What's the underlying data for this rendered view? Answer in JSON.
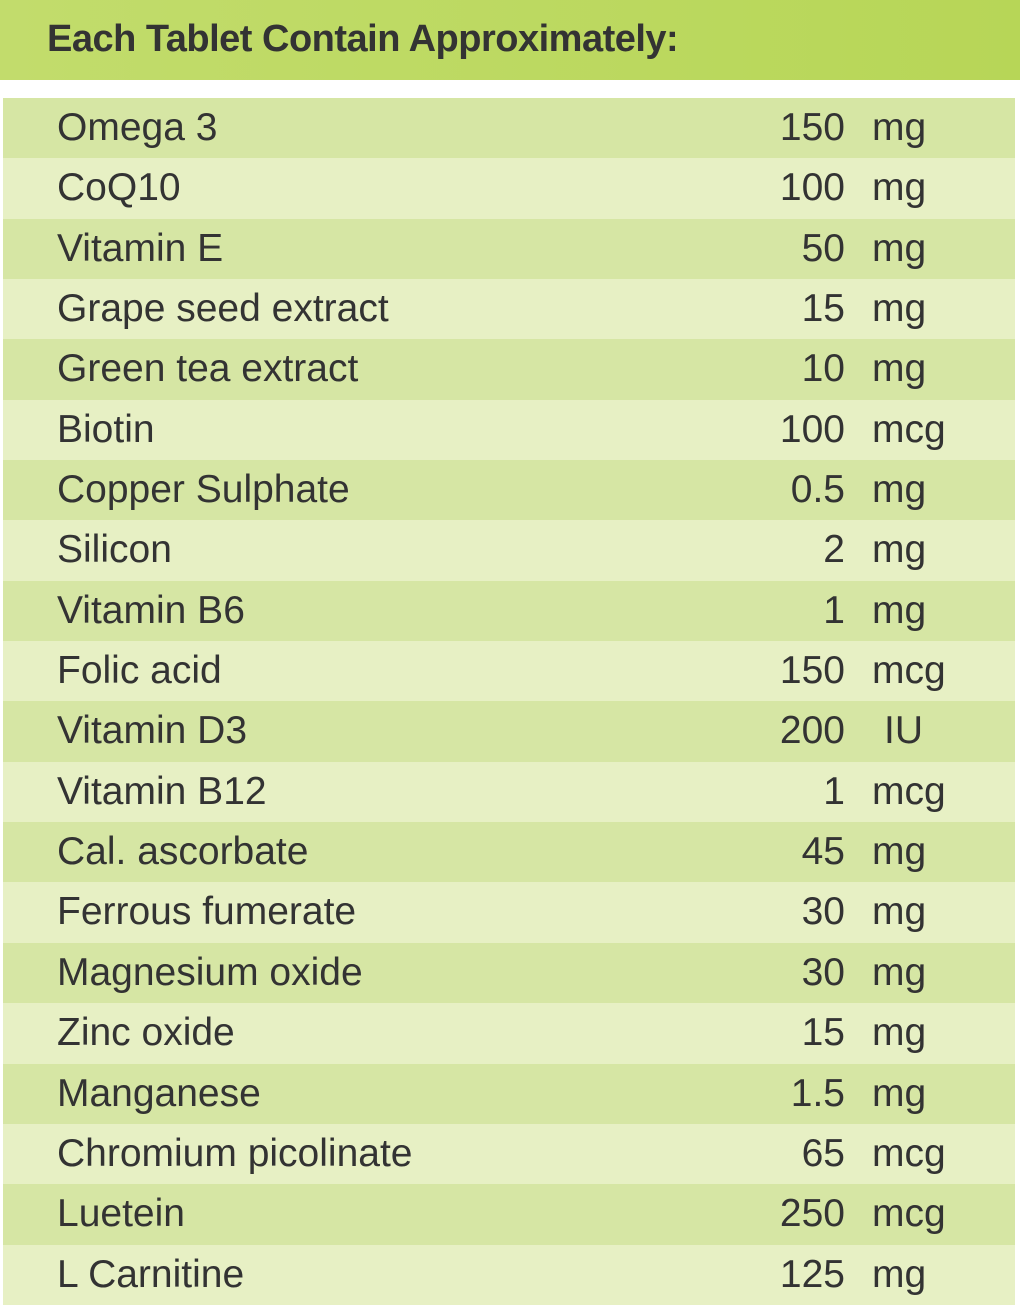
{
  "title": "Each Tablet Contain Approximately:",
  "colors": {
    "header": "#bcd85c",
    "row_dark": "#d6e6a4",
    "row_light": "#e7f0c4",
    "text": "#333333"
  },
  "rows": [
    {
      "name": "Omega 3",
      "amount": "150",
      "unit": "mg"
    },
    {
      "name": "CoQ10",
      "amount": "100",
      "unit": "mg"
    },
    {
      "name": "Vitamin E",
      "amount": "50",
      "unit": "mg"
    },
    {
      "name": "Grape seed extract",
      "amount": "15",
      "unit": "mg"
    },
    {
      "name": "Green tea extract",
      "amount": "10",
      "unit": "mg"
    },
    {
      "name": "Biotin",
      "amount": "100",
      "unit": "mcg"
    },
    {
      "name": "Copper Sulphate",
      "amount": "0.5",
      "unit": "mg"
    },
    {
      "name": "Silicon",
      "amount": "2",
      "unit": "mg"
    },
    {
      "name": "Vitamin B6",
      "amount": "1",
      "unit": "mg"
    },
    {
      "name": "Folic acid",
      "amount": "150",
      "unit": "mcg"
    },
    {
      "name": "Vitamin D3",
      "amount": "200",
      "unit": "IU"
    },
    {
      "name": "Vitamin B12",
      "amount": "1",
      "unit": "mcg"
    },
    {
      "name": "Cal. ascorbate",
      "amount": "45",
      "unit": "mg"
    },
    {
      "name": "Ferrous fumerate",
      "amount": "30",
      "unit": "mg"
    },
    {
      "name": "Magnesium oxide",
      "amount": "30",
      "unit": "mg"
    },
    {
      "name": "Zinc oxide",
      "amount": "15",
      "unit": "mg"
    },
    {
      "name": "Manganese",
      "amount": "1.5",
      "unit": "mg"
    },
    {
      "name": "Chromium picolinate",
      "amount": "65",
      "unit": "mcg"
    },
    {
      "name": "Luetein",
      "amount": "250",
      "unit": "mcg"
    },
    {
      "name": "L Carnitine",
      "amount": "125",
      "unit": "mg"
    }
  ]
}
